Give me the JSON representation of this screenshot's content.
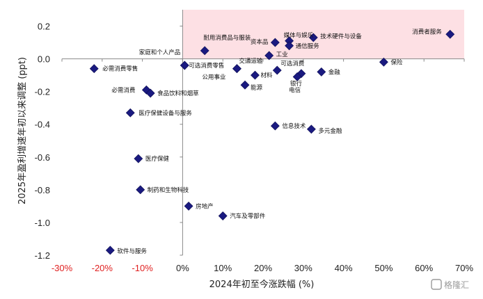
{
  "chart_data": {
    "type": "scatter",
    "xlabel": "2024年初至今涨跌幅 (%)",
    "ylabel": "2025年盈利增速年初以来调整 (ppt)",
    "xlim": [
      -30,
      70
    ],
    "ylim": [
      -1.2,
      0.3
    ],
    "xticks": [
      -30,
      -20,
      -10,
      0,
      10,
      20,
      30,
      40,
      50,
      60,
      70
    ],
    "xtick_labels": [
      "-30%",
      "-20%",
      "-10%",
      "0%",
      "10%",
      "20%",
      "30%",
      "40%",
      "50%",
      "60%",
      "70%"
    ],
    "yticks": [
      0.2,
      0.0,
      -0.2,
      -0.4,
      -0.6,
      -0.8,
      -1.0,
      -1.2
    ],
    "ytick_labels": [
      "0.2",
      "0.0",
      "-0.2",
      "-0.4",
      "-0.6",
      "-0.8",
      "-1.0",
      "-1.2"
    ],
    "highlight_region": {
      "x": [
        0,
        70
      ],
      "y": [
        0,
        0.3
      ],
      "color": "#fde0e4"
    },
    "marker_color": "#1a1a80",
    "grid": false,
    "points": [
      {
        "label": "消费者服务",
        "x": 66.5,
        "y": 0.15
      },
      {
        "label": "技术硬件与设备",
        "x": 32.5,
        "y": 0.13
      },
      {
        "label": "媒体与娱乐",
        "x": 26.5,
        "y": 0.11
      },
      {
        "label": "资本品",
        "x": 23.0,
        "y": 0.1
      },
      {
        "label": "通信服务",
        "x": 26.5,
        "y": 0.08
      },
      {
        "label": "耐用消费品与服装",
        "x": 5.5,
        "y": 0.05
      },
      {
        "label": "工业",
        "x": 21.5,
        "y": 0.02
      },
      {
        "label": "家庭和个人产品",
        "x": 0.5,
        "y": -0.04
      },
      {
        "label": "可选消费零售",
        "x": 0.5,
        "y": -0.04
      },
      {
        "label": "交通运输",
        "x": 13.5,
        "y": -0.06
      },
      {
        "label": "公用事业",
        "x": 13.5,
        "y": -0.06
      },
      {
        "label": "可选消费",
        "x": 23.5,
        "y": -0.07
      },
      {
        "label": "必需消费零售",
        "x": -22.0,
        "y": -0.06
      },
      {
        "label": "保险",
        "x": 50.0,
        "y": -0.02
      },
      {
        "label": "金融",
        "x": 34.5,
        "y": -0.08
      },
      {
        "label": "银行",
        "x": 29.5,
        "y": -0.09
      },
      {
        "label": "电信",
        "x": 28.5,
        "y": -0.11
      },
      {
        "label": "材料",
        "x": 18.0,
        "y": -0.1
      },
      {
        "label": "能源",
        "x": 15.5,
        "y": -0.16
      },
      {
        "label": "必需消费",
        "x": -9.0,
        "y": -0.19
      },
      {
        "label": "食品饮料和烟草",
        "x": -8.0,
        "y": -0.21
      },
      {
        "label": "医疗保健设备与服务",
        "x": -13.0,
        "y": -0.33
      },
      {
        "label": "信息技术",
        "x": 23.0,
        "y": -0.41
      },
      {
        "label": "多元金融",
        "x": 32.0,
        "y": -0.43
      },
      {
        "label": "医疗保健",
        "x": -11.0,
        "y": -0.61
      },
      {
        "label": "制药和生物科技",
        "x": -10.5,
        "y": -0.8
      },
      {
        "label": "房地产",
        "x": 1.5,
        "y": -0.9
      },
      {
        "label": "汽车及零部件",
        "x": 10.0,
        "y": -0.96
      },
      {
        "label": "软件与服务",
        "x": -18.0,
        "y": -1.17
      }
    ]
  },
  "watermark": {
    "text": "格隆汇"
  }
}
